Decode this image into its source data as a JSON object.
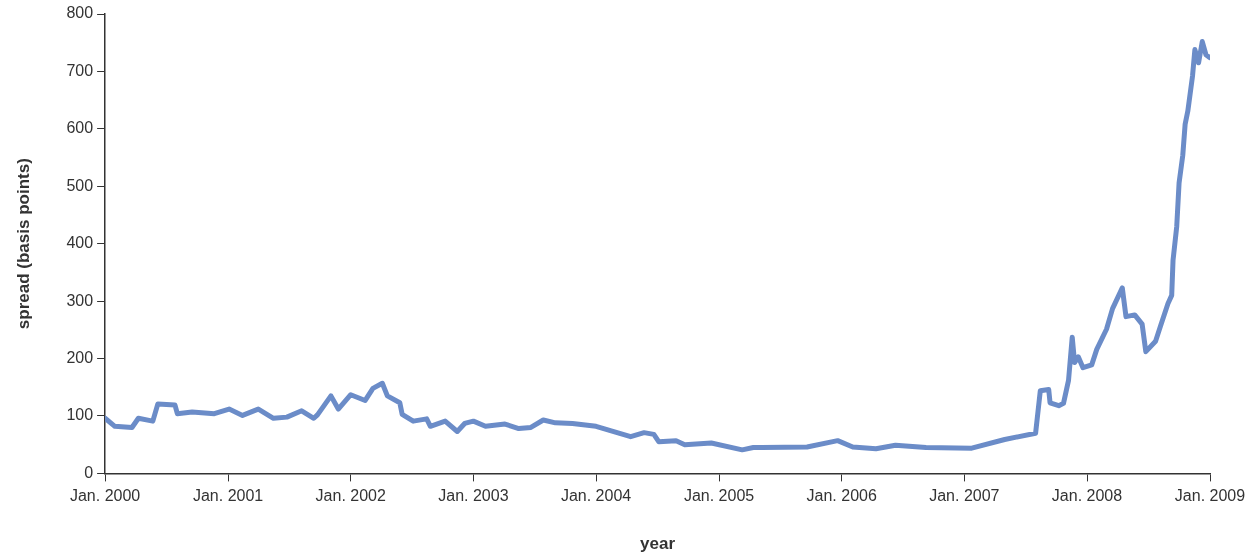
{
  "chart_data": {
    "type": "line",
    "xlabel": "year",
    "ylabel": "spread (basis points)",
    "xlim": [
      "2000-01-01",
      "2009-01-01"
    ],
    "ylim": [
      0,
      800
    ],
    "xticks": [
      {
        "value": "2000-01-01",
        "label": "Jan. 2000"
      },
      {
        "value": "2001-01-01",
        "label": "Jan. 2001"
      },
      {
        "value": "2002-01-01",
        "label": "Jan. 2002"
      },
      {
        "value": "2003-01-01",
        "label": "Jan. 2003"
      },
      {
        "value": "2004-01-01",
        "label": "Jan. 2004"
      },
      {
        "value": "2005-01-01",
        "label": "Jan. 2005"
      },
      {
        "value": "2006-01-01",
        "label": "Jan. 2006"
      },
      {
        "value": "2007-01-01",
        "label": "Jan. 2007"
      },
      {
        "value": "2008-01-01",
        "label": "Jan. 2008"
      },
      {
        "value": "2009-01-01",
        "label": "Jan. 2009"
      }
    ],
    "yticks": [
      0,
      100,
      200,
      300,
      400,
      500,
      600,
      700,
      800
    ],
    "grid": false,
    "legend": false,
    "marker": "none",
    "line_style": "solid",
    "series": [
      {
        "color": "#6b8cc8",
        "x": [
          "2000-01-01",
          "2000-01-30",
          "2000-03-21",
          "2000-04-09",
          "2000-05-22",
          "2000-06-06",
          "2000-07-27",
          "2000-08-03",
          "2000-09-16",
          "2000-11-21",
          "2001-01-04",
          "2001-02-13",
          "2001-04-01",
          "2001-05-16",
          "2001-06-25",
          "2001-08-08",
          "2001-09-13",
          "2001-09-24",
          "2001-11-03",
          "2001-11-25",
          "2002-01-01",
          "2002-02-13",
          "2002-03-08",
          "2002-04-05",
          "2002-04-20",
          "2002-05-27",
          "2002-06-03",
          "2002-07-06",
          "2002-08-15",
          "2002-08-26",
          "2002-10-09",
          "2002-11-14",
          "2002-12-06",
          "2003-01-01",
          "2003-02-06",
          "2003-04-05",
          "2003-05-16",
          "2003-06-21",
          "2003-07-28",
          "2003-09-02",
          "2003-10-23",
          "2004-01-01",
          "2004-04-13",
          "2004-05-23",
          "2004-06-21",
          "2004-07-06",
          "2004-08-26",
          "2004-09-21",
          "2004-12-09",
          "2005-03-11",
          "2005-04-13",
          "2005-09-20",
          "2005-12-20",
          "2006-02-03",
          "2006-04-13",
          "2006-06-10",
          "2006-09-09",
          "2007-01-23",
          "2007-05-01",
          "2007-08-01",
          "2007-08-15",
          "2007-09-09",
          "2007-09-13",
          "2007-10-09",
          "2007-10-23",
          "2007-11-07",
          "2007-11-18",
          "2007-11-25",
          "2007-12-06",
          "2007-12-20",
          "2008-01-15",
          "2008-01-30",
          "2008-02-28",
          "2008-03-17",
          "2008-04-15",
          "2008-04-26",
          "2008-05-22",
          "2008-06-13",
          "2008-06-24",
          "2008-07-23",
          "2008-08-07",
          "2008-08-29",
          "2008-09-09",
          "2008-09-13",
          "2008-09-24",
          "2008-10-01",
          "2008-10-12",
          "2008-10-19",
          "2008-10-27",
          "2008-11-10",
          "2008-11-17",
          "2008-11-28",
          "2008-12-09",
          "2008-12-20",
          "2008-12-31"
        ],
        "values": [
          96,
          82,
          80,
          96,
          91,
          121,
          119,
          104,
          107,
          104,
          112,
          101,
          112,
          96,
          98,
          109,
          96,
          102,
          135,
          112,
          137,
          127,
          148,
          157,
          135,
          123,
          103,
          91,
          95,
          82,
          91,
          73,
          87,
          91,
          82,
          86,
          78,
          80,
          93,
          88,
          87,
          82,
          64,
          71,
          68,
          55,
          57,
          50,
          53,
          41,
          45,
          46,
          57,
          46,
          43,
          49,
          45,
          44,
          59,
          70,
          144,
          146,
          123,
          118,
          122,
          162,
          237,
          193,
          203,
          184,
          189,
          216,
          251,
          287,
          323,
          273,
          276,
          260,
          212,
          230,
          257,
          296,
          310,
          371,
          430,
          506,
          554,
          608,
          631,
          692,
          738,
          715,
          752,
          729,
          724
        ]
      }
    ]
  }
}
